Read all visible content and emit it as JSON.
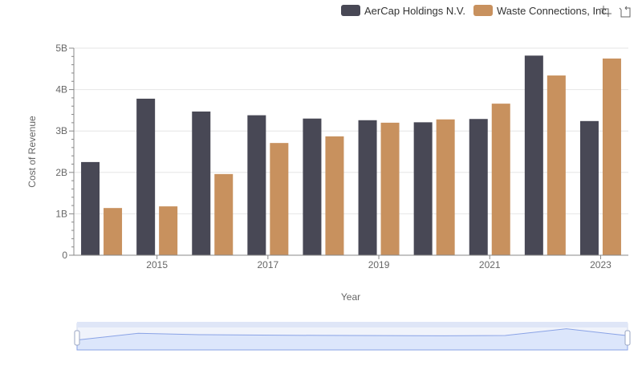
{
  "colors": {
    "aercap": "#484855",
    "waste": "#c8915e",
    "grid": "#e6e6e6",
    "axis": "#888888",
    "zoom_fill": "#dce6fb",
    "zoom_line": "#8aa3e6"
  },
  "legend": {
    "aercap": "AerCap Holdings N.V.",
    "waste": "Waste Connections, Inc."
  },
  "toolbox": [
    {
      "name": "zoom-icon"
    },
    {
      "name": "restore-icon"
    }
  ],
  "chart_data": {
    "type": "bar",
    "title": "",
    "xlabel": "Year",
    "ylabel": "Cost of Revenue",
    "ylim": [
      0,
      5000000000
    ],
    "y_ticks": [
      "0",
      "1B",
      "2B",
      "3B",
      "4B",
      "5B"
    ],
    "categories": [
      "2014",
      "2015",
      "2016",
      "2017",
      "2018",
      "2019",
      "2020",
      "2021",
      "2022",
      "2023"
    ],
    "x_tick_labels": [
      "2015",
      "2017",
      "2019",
      "2021",
      "2023"
    ],
    "series": [
      {
        "name": "AerCap Holdings N.V.",
        "values": [
          2250000000,
          3780000000,
          3470000000,
          3380000000,
          3300000000,
          3260000000,
          3210000000,
          3290000000,
          4820000000,
          3240000000
        ]
      },
      {
        "name": "Waste Connections, Inc.",
        "values": [
          1140000000,
          1180000000,
          1960000000,
          2710000000,
          2870000000,
          3200000000,
          3280000000,
          3660000000,
          4340000000,
          4750000000
        ]
      }
    ]
  }
}
